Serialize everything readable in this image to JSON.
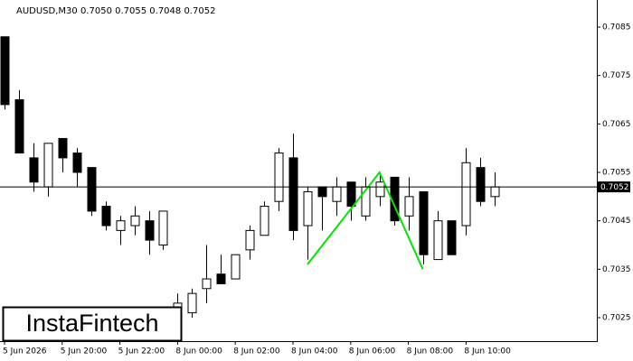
{
  "chart_data": {
    "type": "candlestick",
    "header": "AUDUSD,M30  0.7050 0.7055 0.7048 0.7052",
    "watermark": "InstaFintech",
    "categories": [
      "5 Jun 2026",
      null,
      null,
      null,
      "5 Jun 20:00",
      null,
      null,
      null,
      "5 Jun 22:00",
      null,
      null,
      null,
      "8 Jun 00:00",
      null,
      null,
      null,
      "8 Jun 02:00",
      null,
      null,
      null,
      "8 Jun 04:00",
      null,
      null,
      null,
      "8 Jun 06:00",
      null,
      null,
      null,
      "8 Jun 08:00",
      null,
      null,
      null,
      "8 Jun 10:00",
      null,
      null
    ],
    "open": [
      0.7083,
      0.707,
      0.7058,
      0.7052,
      0.7062,
      0.7059,
      0.7056,
      0.7048,
      0.7043,
      0.7044,
      0.7045,
      0.704,
      0.7025,
      0.7026,
      0.7031,
      0.7034,
      0.7033,
      0.7039,
      0.7042,
      0.7049,
      0.7058,
      0.7044,
      0.7052,
      0.7049,
      0.7053,
      0.7046,
      0.705,
      0.7054,
      0.7046,
      0.7051,
      0.7037,
      0.7045,
      0.7044,
      0.7056,
      0.705
    ],
    "high": [
      0.7083,
      0.7072,
      0.7061,
      0.7061,
      0.7062,
      0.706,
      0.7056,
      0.7049,
      0.7046,
      0.7048,
      0.7047,
      0.7047,
      0.703,
      0.7031,
      0.704,
      0.7038,
      0.7038,
      0.7044,
      0.7049,
      0.706,
      0.7063,
      0.7052,
      0.7052,
      0.7054,
      0.7053,
      0.7054,
      0.7055,
      0.7054,
      0.7054,
      0.7051,
      0.7047,
      0.7045,
      0.706,
      0.7058,
      0.7055
    ],
    "low": [
      0.7068,
      0.7059,
      0.7051,
      0.705,
      0.7055,
      0.7052,
      0.7046,
      0.7043,
      0.704,
      0.7042,
      0.7038,
      0.7039,
      0.7022,
      0.7025,
      0.7028,
      0.7032,
      0.7033,
      0.7037,
      0.7042,
      0.7047,
      0.7041,
      0.7037,
      0.7043,
      0.7046,
      0.7045,
      0.7045,
      0.7048,
      0.7044,
      0.7043,
      0.7036,
      0.7037,
      0.7038,
      0.7042,
      0.7048,
      0.7048
    ],
    "close": [
      0.7069,
      0.7059,
      0.7053,
      0.7061,
      0.7058,
      0.7055,
      0.7047,
      0.7044,
      0.7045,
      0.7046,
      0.7041,
      0.7047,
      0.7028,
      0.703,
      0.7033,
      0.7032,
      0.7038,
      0.7043,
      0.7048,
      0.7059,
      0.7043,
      0.7051,
      0.705,
      0.7052,
      0.7048,
      0.7052,
      0.7053,
      0.7045,
      0.705,
      0.7038,
      0.7045,
      0.7038,
      0.7057,
      0.7049,
      0.7052
    ],
    "up_color": "#ffffff",
    "down_color": "#000000",
    "ylim": [
      0.702,
      0.709
    ],
    "yticks": [
      0.7025,
      0.7035,
      0.7045,
      0.7055,
      0.7065,
      0.7075,
      0.7085
    ],
    "last_price": 0.7052,
    "pattern": {
      "color": "#00e600",
      "x": [
        21,
        26,
        29
      ],
      "values": [
        0.7036,
        0.7055,
        0.7035
      ]
    }
  }
}
